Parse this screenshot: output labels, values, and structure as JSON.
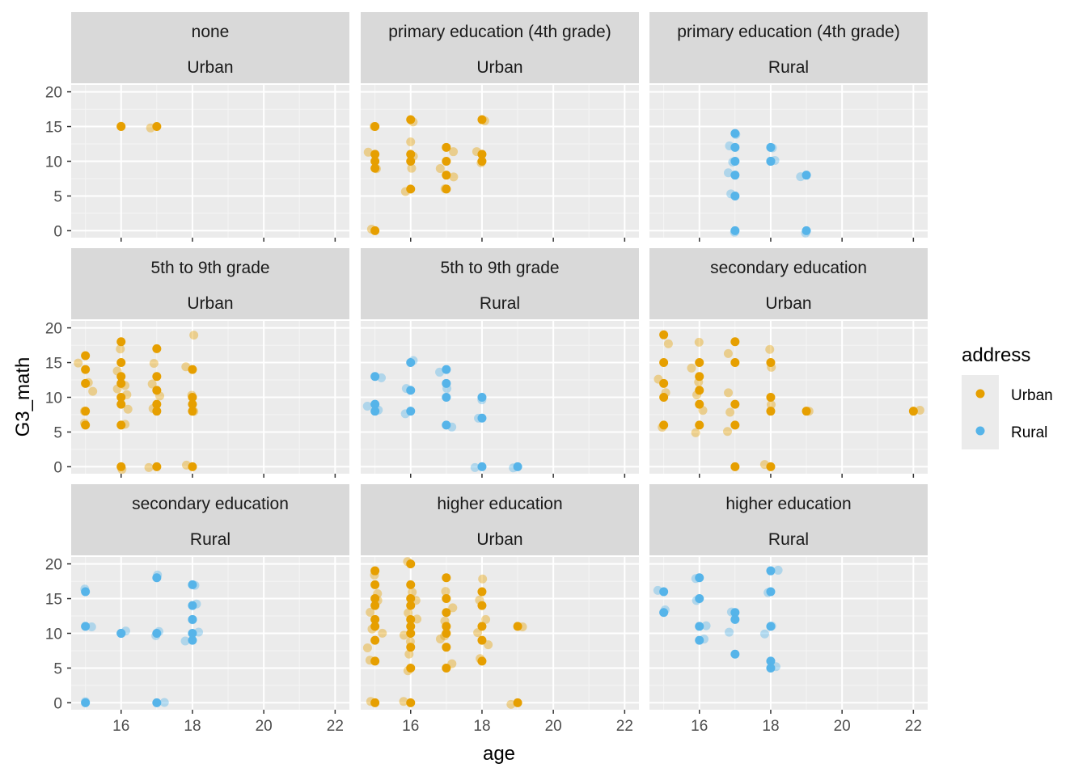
{
  "chart_data": {
    "type": "scatter",
    "xlabel": "age",
    "ylabel": "G3_math",
    "xlim": [
      14.6,
      22.4
    ],
    "ylim": [
      -1,
      21
    ],
    "x_ticks": [
      "16",
      "18",
      "20",
      "22"
    ],
    "y_ticks": [
      "0",
      "5",
      "10",
      "15",
      "20"
    ],
    "legend": {
      "title": "address",
      "position": "right",
      "entries": [
        {
          "label": "Urban",
          "color": "#E69F00"
        },
        {
          "label": "Rural",
          "color": "#56B4E9"
        }
      ]
    },
    "panels": [
      {
        "strip": [
          "none",
          "Urban"
        ],
        "address": "Urban",
        "points": [
          [
            16,
            15
          ],
          [
            16,
            15
          ],
          [
            17,
            15
          ],
          [
            17,
            15
          ]
        ]
      },
      {
        "strip": [
          "primary education (4th grade)",
          "Urban"
        ],
        "address": "Urban",
        "points": [
          [
            15,
            15
          ],
          [
            15,
            15
          ],
          [
            15,
            11
          ],
          [
            15,
            11
          ],
          [
            15,
            10
          ],
          [
            15,
            9
          ],
          [
            15,
            9
          ],
          [
            15,
            0
          ],
          [
            15,
            0
          ],
          [
            16,
            16
          ],
          [
            16,
            16
          ],
          [
            16,
            13
          ],
          [
            16,
            11
          ],
          [
            16,
            11
          ],
          [
            16,
            10
          ],
          [
            16,
            9
          ],
          [
            16,
            6
          ],
          [
            16,
            6
          ],
          [
            17,
            12
          ],
          [
            17,
            11
          ],
          [
            17,
            10
          ],
          [
            17,
            9
          ],
          [
            17,
            8
          ],
          [
            17,
            8
          ],
          [
            17,
            6
          ],
          [
            17,
            6
          ],
          [
            18,
            16
          ],
          [
            18,
            16
          ],
          [
            18,
            11
          ],
          [
            18,
            11
          ],
          [
            18,
            10
          ],
          [
            18,
            10
          ]
        ]
      },
      {
        "strip": [
          "primary education (4th grade)",
          "Rural"
        ],
        "address": "Rural",
        "points": [
          [
            17,
            14
          ],
          [
            17,
            14
          ],
          [
            17,
            12
          ],
          [
            17,
            12
          ],
          [
            17,
            10
          ],
          [
            17,
            10
          ],
          [
            17,
            8
          ],
          [
            17,
            8
          ],
          [
            17,
            5
          ],
          [
            17,
            5
          ],
          [
            17,
            0
          ],
          [
            17,
            0
          ],
          [
            18,
            12
          ],
          [
            18,
            12
          ],
          [
            18,
            10
          ],
          [
            18,
            10
          ],
          [
            18,
            10
          ],
          [
            19,
            8
          ],
          [
            19,
            8
          ],
          [
            19,
            0
          ],
          [
            19,
            0
          ]
        ]
      },
      {
        "strip": [
          "5th to 9th grade",
          "Urban"
        ],
        "address": "Urban",
        "points": [
          [
            15,
            16
          ],
          [
            15,
            15
          ],
          [
            15,
            14
          ],
          [
            15,
            12
          ],
          [
            15,
            12
          ],
          [
            15,
            11
          ],
          [
            15,
            8
          ],
          [
            15,
            8
          ],
          [
            15,
            6
          ],
          [
            15,
            6
          ],
          [
            16,
            18
          ],
          [
            16,
            17
          ],
          [
            16,
            15
          ],
          [
            16,
            14
          ],
          [
            16,
            13
          ],
          [
            16,
            12
          ],
          [
            16,
            12
          ],
          [
            16,
            11
          ],
          [
            16,
            10
          ],
          [
            16,
            10
          ],
          [
            16,
            9
          ],
          [
            16,
            8
          ],
          [
            16,
            6
          ],
          [
            16,
            6
          ],
          [
            16,
            0
          ],
          [
            16,
            0
          ],
          [
            17,
            17
          ],
          [
            17,
            15
          ],
          [
            17,
            13
          ],
          [
            17,
            12
          ],
          [
            17,
            11
          ],
          [
            17,
            10
          ],
          [
            17,
            9
          ],
          [
            17,
            8
          ],
          [
            17,
            8
          ],
          [
            17,
            0
          ],
          [
            17,
            0
          ],
          [
            18,
            19
          ],
          [
            18,
            14
          ],
          [
            18,
            14
          ],
          [
            18,
            10
          ],
          [
            18,
            10
          ],
          [
            18,
            9
          ],
          [
            18,
            8
          ],
          [
            18,
            8
          ],
          [
            18,
            0
          ],
          [
            18,
            0
          ]
        ]
      },
      {
        "strip": [
          "5th to 9th grade",
          "Rural"
        ],
        "address": "Rural",
        "points": [
          [
            15,
            13
          ],
          [
            15,
            13
          ],
          [
            15,
            9
          ],
          [
            15,
            9
          ],
          [
            15,
            8
          ],
          [
            15,
            8
          ],
          [
            16,
            15
          ],
          [
            16,
            15
          ],
          [
            16,
            11
          ],
          [
            16,
            11
          ],
          [
            16,
            8
          ],
          [
            16,
            8
          ],
          [
            17,
            14
          ],
          [
            17,
            14
          ],
          [
            17,
            12
          ],
          [
            17,
            11
          ],
          [
            17,
            10
          ],
          [
            17,
            6
          ],
          [
            17,
            6
          ],
          [
            18,
            10
          ],
          [
            18,
            10
          ],
          [
            18,
            7
          ],
          [
            18,
            7
          ],
          [
            18,
            0
          ],
          [
            18,
            0
          ],
          [
            19,
            0
          ],
          [
            19,
            0
          ]
        ]
      },
      {
        "strip": [
          "secondary education",
          "Urban"
        ],
        "address": "Urban",
        "points": [
          [
            15,
            19
          ],
          [
            15,
            18
          ],
          [
            15,
            15
          ],
          [
            15,
            13
          ],
          [
            15,
            12
          ],
          [
            15,
            11
          ],
          [
            15,
            10
          ],
          [
            15,
            6
          ],
          [
            15,
            6
          ],
          [
            16,
            18
          ],
          [
            16,
            15
          ],
          [
            16,
            14
          ],
          [
            16,
            13
          ],
          [
            16,
            12
          ],
          [
            16,
            11
          ],
          [
            16,
            10
          ],
          [
            16,
            9
          ],
          [
            16,
            8
          ],
          [
            16,
            6
          ],
          [
            16,
            5
          ],
          [
            17,
            18
          ],
          [
            17,
            16
          ],
          [
            17,
            15
          ],
          [
            17,
            11
          ],
          [
            17,
            9
          ],
          [
            17,
            8
          ],
          [
            17,
            6
          ],
          [
            17,
            5
          ],
          [
            17,
            0
          ],
          [
            18,
            17
          ],
          [
            18,
            15
          ],
          [
            18,
            14
          ],
          [
            18,
            10
          ],
          [
            18,
            9
          ],
          [
            18,
            8
          ],
          [
            18,
            0
          ],
          [
            18,
            0
          ],
          [
            19,
            8
          ],
          [
            19,
            8
          ],
          [
            22,
            8
          ],
          [
            22,
            8
          ]
        ]
      },
      {
        "strip": [
          "secondary education",
          "Rural"
        ],
        "address": "Rural",
        "points": [
          [
            15,
            16
          ],
          [
            15,
            16
          ],
          [
            15,
            11
          ],
          [
            15,
            11
          ],
          [
            15,
            0
          ],
          [
            15,
            0
          ],
          [
            16,
            10
          ],
          [
            16,
            10
          ],
          [
            16,
            10
          ],
          [
            17,
            18
          ],
          [
            17,
            18
          ],
          [
            17,
            10
          ],
          [
            17,
            10
          ],
          [
            17,
            10
          ],
          [
            17,
            0
          ],
          [
            17,
            0
          ],
          [
            18,
            17
          ],
          [
            18,
            17
          ],
          [
            18,
            14
          ],
          [
            18,
            14
          ],
          [
            18,
            12
          ],
          [
            18,
            12
          ],
          [
            18,
            10
          ],
          [
            18,
            10
          ],
          [
            18,
            9
          ],
          [
            18,
            9
          ]
        ]
      },
      {
        "strip": [
          "higher education",
          "Urban"
        ],
        "address": "Urban",
        "points": [
          [
            15,
            19
          ],
          [
            15,
            18
          ],
          [
            15,
            17
          ],
          [
            15,
            16
          ],
          [
            15,
            15
          ],
          [
            15,
            15
          ],
          [
            15,
            14
          ],
          [
            15,
            13
          ],
          [
            15,
            12
          ],
          [
            15,
            11
          ],
          [
            15,
            11
          ],
          [
            15,
            10
          ],
          [
            15,
            9
          ],
          [
            15,
            8
          ],
          [
            15,
            6
          ],
          [
            15,
            6
          ],
          [
            15,
            0
          ],
          [
            15,
            0
          ],
          [
            16,
            20
          ],
          [
            16,
            20
          ],
          [
            16,
            17
          ],
          [
            16,
            16
          ],
          [
            16,
            15
          ],
          [
            16,
            15
          ],
          [
            16,
            14
          ],
          [
            16,
            13
          ],
          [
            16,
            12
          ],
          [
            16,
            12
          ],
          [
            16,
            11
          ],
          [
            16,
            10
          ],
          [
            16,
            10
          ],
          [
            16,
            9
          ],
          [
            16,
            8
          ],
          [
            16,
            7
          ],
          [
            16,
            5
          ],
          [
            16,
            5
          ],
          [
            16,
            0
          ],
          [
            16,
            0
          ],
          [
            17,
            18
          ],
          [
            17,
            16
          ],
          [
            17,
            15
          ],
          [
            17,
            14
          ],
          [
            17,
            13
          ],
          [
            17,
            12
          ],
          [
            17,
            11
          ],
          [
            17,
            10
          ],
          [
            17,
            10
          ],
          [
            17,
            9
          ],
          [
            17,
            8
          ],
          [
            17,
            6
          ],
          [
            17,
            5
          ],
          [
            18,
            18
          ],
          [
            18,
            16
          ],
          [
            18,
            15
          ],
          [
            18,
            14
          ],
          [
            18,
            12
          ],
          [
            18,
            11
          ],
          [
            18,
            10
          ],
          [
            18,
            9
          ],
          [
            18,
            8
          ],
          [
            18,
            6
          ],
          [
            18,
            6
          ],
          [
            19,
            11
          ],
          [
            19,
            11
          ],
          [
            19,
            0
          ],
          [
            19,
            0
          ]
        ]
      },
      {
        "strip": [
          "higher education",
          "Rural"
        ],
        "address": "Rural",
        "points": [
          [
            15,
            16
          ],
          [
            15,
            16
          ],
          [
            15,
            13
          ],
          [
            15,
            13
          ],
          [
            16,
            18
          ],
          [
            16,
            18
          ],
          [
            16,
            15
          ],
          [
            16,
            15
          ],
          [
            16,
            11
          ],
          [
            16,
            11
          ],
          [
            16,
            9
          ],
          [
            16,
            9
          ],
          [
            17,
            13
          ],
          [
            17,
            13
          ],
          [
            17,
            12
          ],
          [
            17,
            10
          ],
          [
            17,
            7
          ],
          [
            18,
            19
          ],
          [
            18,
            19
          ],
          [
            18,
            16
          ],
          [
            18,
            16
          ],
          [
            18,
            11
          ],
          [
            18,
            11
          ],
          [
            18,
            10
          ],
          [
            18,
            6
          ],
          [
            18,
            5
          ],
          [
            18,
            5
          ]
        ]
      }
    ]
  }
}
